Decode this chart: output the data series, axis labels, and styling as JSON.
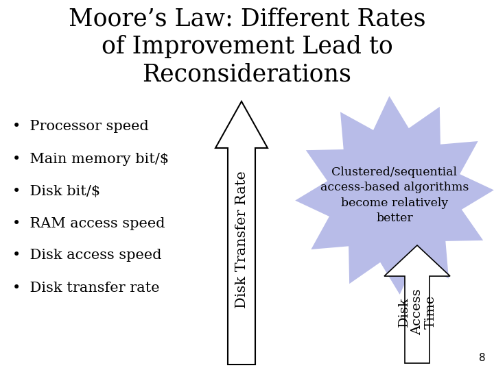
{
  "title": "Moore’s Law: Different Rates\nof Improvement Lead to\nReconsiderations",
  "title_fontsize": 25,
  "title_color": "#000000",
  "background_color": "#ffffff",
  "bullet_items": [
    "Processor speed",
    "Main memory bit/$",
    "Disk bit/$",
    "RAM access speed",
    "Disk access speed",
    "Disk transfer rate"
  ],
  "bullet_fontsize": 15,
  "star_color": "#b8bce8",
  "star_text": "Clustered/sequential\naccess-based algorithms\nbecome relatively\nbetter",
  "star_text_fontsize": 12.5,
  "arrow_big_label": "Disk Transfer Rate",
  "arrow_small_label": "Disk\nAccess\nTime",
  "arrow_label_fontsize": 15,
  "arrow_small_label_fontsize": 14,
  "page_number": "8"
}
